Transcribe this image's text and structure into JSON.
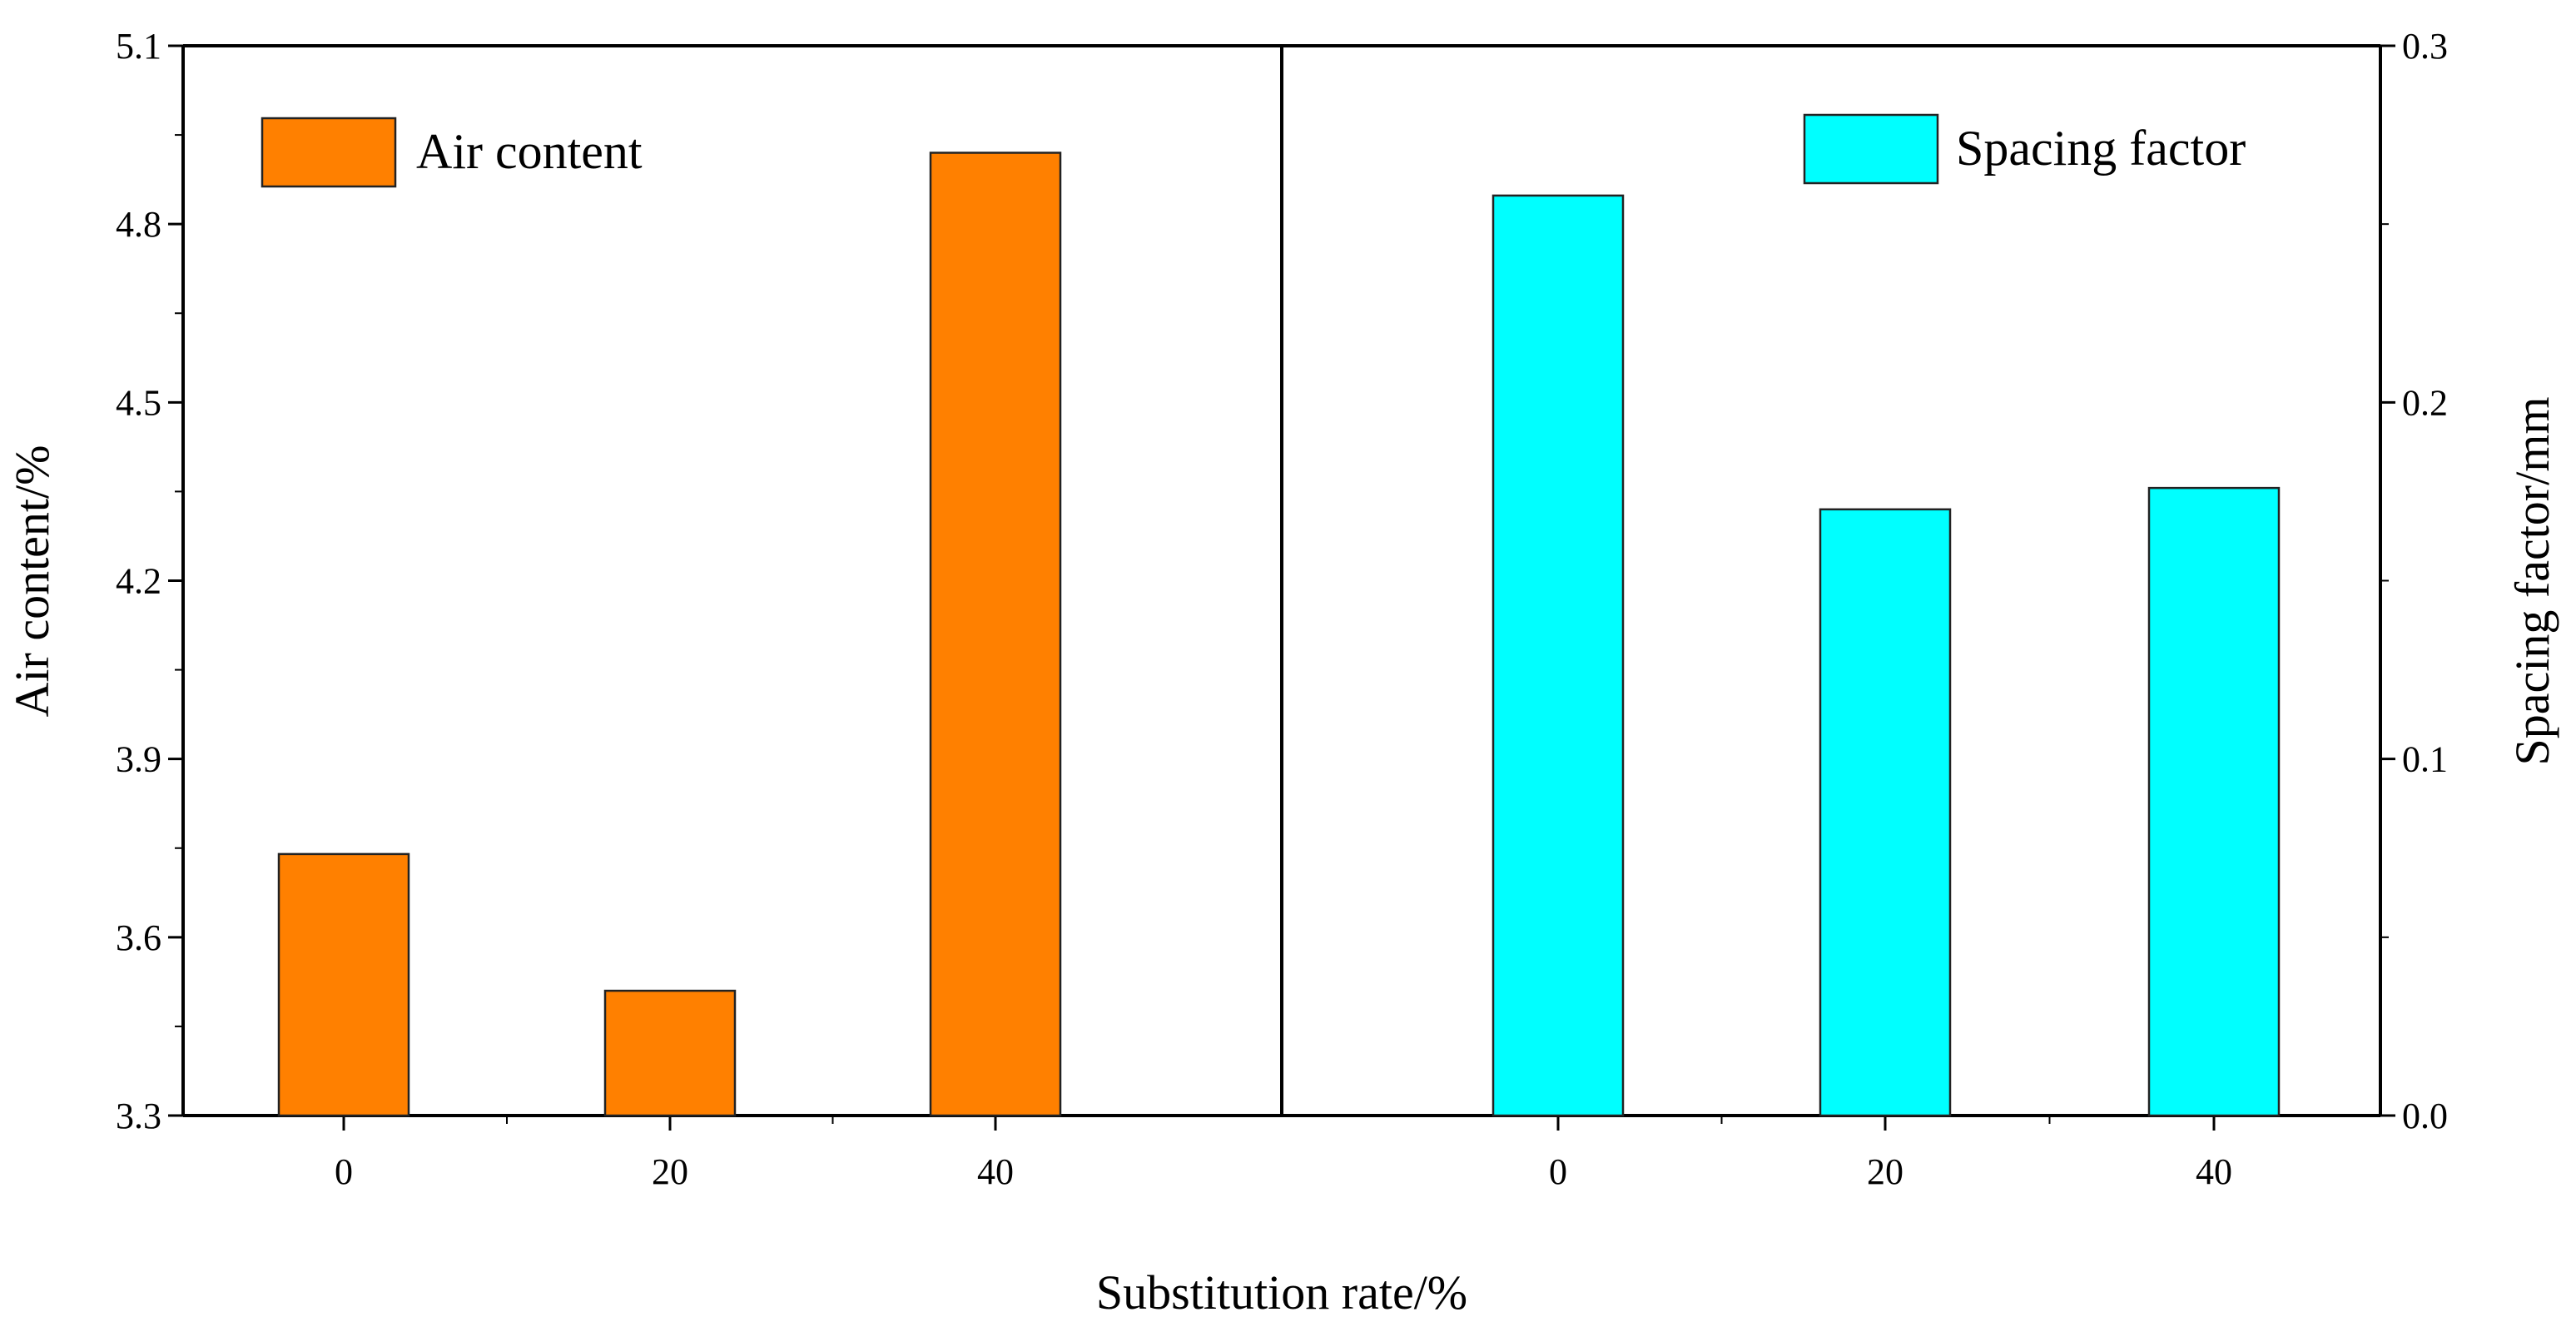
{
  "chart_data": {
    "type": "bar",
    "xlabel": "Substitution rate/%",
    "left_panel": {
      "ylabel": "Air content/%",
      "ylim": [
        3.3,
        5.1
      ],
      "yticks": [
        3.3,
        3.6,
        3.9,
        4.2,
        4.5,
        4.8,
        5.1
      ],
      "ytick_labels": [
        "3.3",
        "3.6",
        "3.9",
        "4.2",
        "4.5",
        "4.8",
        "5.1"
      ],
      "categories": [
        "0",
        "20",
        "40"
      ],
      "series": [
        {
          "name": "Air content",
          "values": [
            3.74,
            3.51,
            4.92
          ],
          "color": "#ff8000"
        }
      ],
      "legend_position": "top-left"
    },
    "right_panel": {
      "ylabel": "Spacing factor/mm",
      "ylim": [
        0.0,
        0.3
      ],
      "yticks": [
        0.0,
        0.1,
        0.2,
        0.3
      ],
      "ytick_labels": [
        "0.0",
        "0.1",
        "0.2",
        "0.3"
      ],
      "categories": [
        "0",
        "20",
        "40"
      ],
      "series": [
        {
          "name": "Spacing factor",
          "values": [
            0.258,
            0.17,
            0.176
          ],
          "color": "#00ffff"
        }
      ],
      "legend_position": "top-right"
    },
    "grid": false
  }
}
